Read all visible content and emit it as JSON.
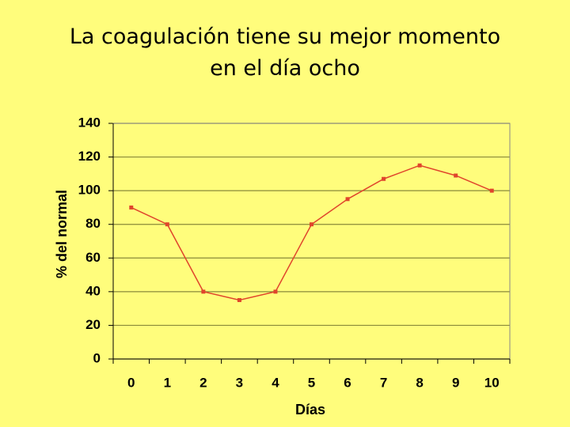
{
  "chart_data": {
    "type": "line",
    "title": [
      "La  coagulación  tiene su mejor momento",
      "en el día ocho"
    ],
    "x_label": "Días",
    "y_label": "% del normal",
    "categories": [
      "0",
      "1",
      "2",
      "3",
      "4",
      "5",
      "6",
      "7",
      "8",
      "9",
      "10"
    ],
    "series": [
      {
        "color": "#e0452c",
        "values": [
          90,
          80,
          40,
          35,
          40,
          80,
          95,
          107,
          115,
          109,
          100
        ]
      }
    ],
    "ylim": [
      0,
      140
    ],
    "yticks": [
      0,
      20,
      40,
      60,
      80,
      100,
      120,
      140
    ],
    "grid": true
  }
}
